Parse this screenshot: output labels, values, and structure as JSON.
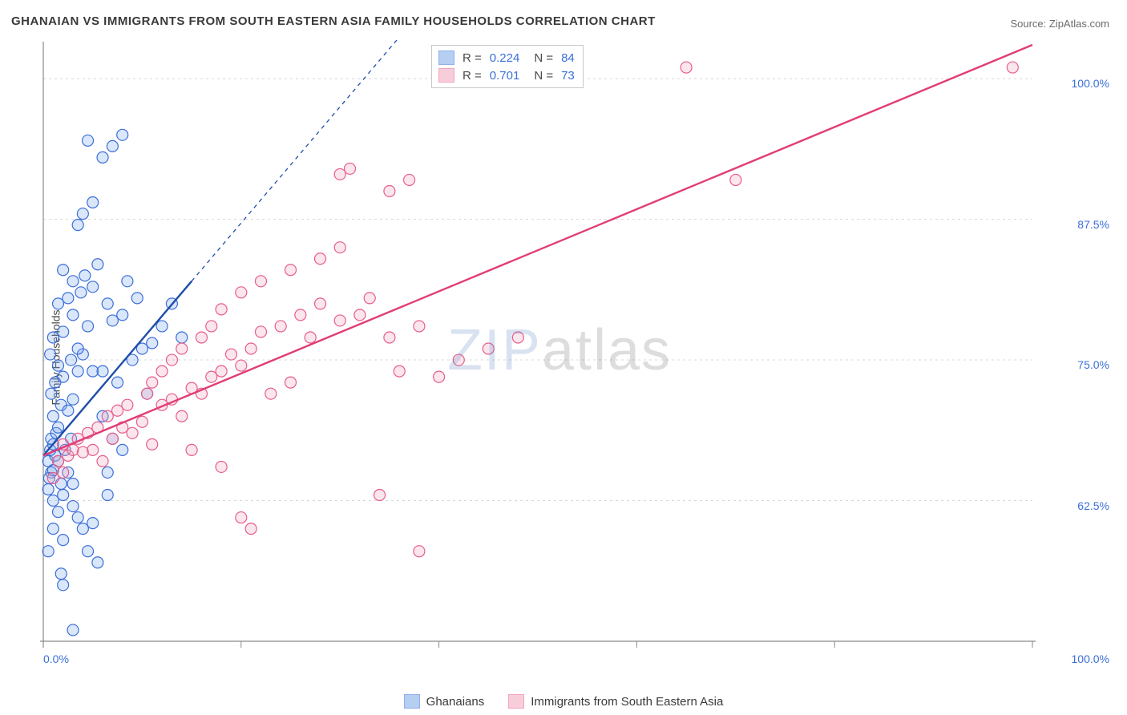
{
  "title": "GHANAIAN VS IMMIGRANTS FROM SOUTH EASTERN ASIA FAMILY HOUSEHOLDS CORRELATION CHART",
  "source": "Source: ZipAtlas.com",
  "y_axis_label": "Family Households",
  "watermark": {
    "part1": "ZIP",
    "part2": "atlas"
  },
  "chart": {
    "type": "scatter",
    "background_color": "#ffffff",
    "grid_color": "#d8d8d8",
    "axis_line_color": "#8a8a8a",
    "x_domain": [
      0,
      100
    ],
    "y_domain": [
      50,
      103
    ],
    "y_gridlines": [
      62.5,
      75.0,
      87.5,
      100.0
    ],
    "y_tick_labels": [
      "62.5%",
      "75.0%",
      "87.5%",
      "100.0%"
    ],
    "x_gridticks": [
      0,
      20,
      40,
      60,
      80,
      100
    ],
    "x_tick_labels": {
      "min": "0.0%",
      "max": "100.0%"
    },
    "marker_radius": 7,
    "marker_stroke_width": 1.2,
    "marker_fill_opacity": 0.28,
    "trend_line_width": 2.4,
    "trend_dash": "5,5",
    "series": [
      {
        "id": "ghanaians",
        "label": "Ghanaians",
        "fill": "#7aa7e8",
        "stroke": "#3b6fd9",
        "line_color": "#1f4ea8",
        "R": "0.224",
        "N": "84",
        "trend": {
          "x1": 0,
          "y1": 66.5,
          "x2": 15,
          "y2": 82,
          "extend_to_x": 48
        },
        "points": [
          [
            0.5,
            66
          ],
          [
            0.8,
            65
          ],
          [
            0.6,
            64.5
          ],
          [
            1,
            65.2
          ],
          [
            1.2,
            66.5
          ],
          [
            0.7,
            67
          ],
          [
            1.5,
            66
          ],
          [
            1,
            67.5
          ],
          [
            0.8,
            68
          ],
          [
            1.3,
            68.5
          ],
          [
            0.5,
            63.5
          ],
          [
            1.8,
            64
          ],
          [
            1,
            62.5
          ],
          [
            2,
            63
          ],
          [
            2.5,
            65
          ],
          [
            1.5,
            61.5
          ],
          [
            3,
            62
          ],
          [
            3.5,
            61
          ],
          [
            4,
            60
          ],
          [
            2,
            59
          ],
          [
            4.5,
            58
          ],
          [
            5,
            60.5
          ],
          [
            3,
            64
          ],
          [
            2.2,
            67
          ],
          [
            2.8,
            68
          ],
          [
            1.5,
            69
          ],
          [
            1,
            70
          ],
          [
            1.8,
            71
          ],
          [
            2.5,
            70.5
          ],
          [
            3,
            71.5
          ],
          [
            0.8,
            72
          ],
          [
            1.2,
            73
          ],
          [
            2,
            73.5
          ],
          [
            3.5,
            74
          ],
          [
            1.5,
            74.5
          ],
          [
            2.8,
            75
          ],
          [
            0.7,
            75.5
          ],
          [
            4,
            75.5
          ],
          [
            5,
            74
          ],
          [
            3.5,
            76
          ],
          [
            1,
            77
          ],
          [
            2,
            77.5
          ],
          [
            4.5,
            78
          ],
          [
            3,
            79
          ],
          [
            1.5,
            80
          ],
          [
            2.5,
            80.5
          ],
          [
            3.8,
            81
          ],
          [
            5,
            81.5
          ],
          [
            3,
            82
          ],
          [
            4.2,
            82.5
          ],
          [
            2,
            83
          ],
          [
            5.5,
            83.5
          ],
          [
            6.5,
            80
          ],
          [
            7,
            78.5
          ],
          [
            8,
            79
          ],
          [
            6,
            74
          ],
          [
            9,
            75
          ],
          [
            10,
            76
          ],
          [
            8.5,
            82
          ],
          [
            9.5,
            80.5
          ],
          [
            7.5,
            73
          ],
          [
            6,
            70
          ],
          [
            7,
            68
          ],
          [
            8,
            67
          ],
          [
            11,
            76.5
          ],
          [
            4,
            88
          ],
          [
            5,
            89
          ],
          [
            6,
            93
          ],
          [
            7,
            94
          ],
          [
            8,
            95
          ],
          [
            4.5,
            94.5
          ],
          [
            3,
            51
          ],
          [
            5.5,
            57
          ],
          [
            6.5,
            63
          ],
          [
            2,
            55
          ],
          [
            1,
            60
          ],
          [
            0.5,
            58
          ],
          [
            1.8,
            56
          ],
          [
            12,
            78
          ],
          [
            10.5,
            72
          ],
          [
            13,
            80
          ],
          [
            14,
            77
          ],
          [
            6.5,
            65
          ],
          [
            3.5,
            87
          ]
        ]
      },
      {
        "id": "sea",
        "label": "Immigrants from South Eastern Asia",
        "fill": "#f4a6bd",
        "stroke": "#e75d8a",
        "line_color": "#e13d74",
        "R": "0.701",
        "N": "73",
        "trend": {
          "x1": 0,
          "y1": 66.5,
          "x2": 100,
          "y2": 103,
          "extend_to_x": 100
        },
        "points": [
          [
            1,
            64.5
          ],
          [
            2,
            65
          ],
          [
            1.5,
            66
          ],
          [
            2.5,
            66.5
          ],
          [
            3,
            67
          ],
          [
            2,
            67.5
          ],
          [
            4,
            66.8
          ],
          [
            3.5,
            68
          ],
          [
            5,
            67
          ],
          [
            4.5,
            68.5
          ],
          [
            6,
            66
          ],
          [
            5.5,
            69
          ],
          [
            7,
            68
          ],
          [
            6.5,
            70
          ],
          [
            8,
            69
          ],
          [
            7.5,
            70.5
          ],
          [
            9,
            68.5
          ],
          [
            8.5,
            71
          ],
          [
            11,
            67.5
          ],
          [
            10,
            69.5
          ],
          [
            12,
            71
          ],
          [
            10.5,
            72
          ],
          [
            13,
            71.5
          ],
          [
            14,
            70
          ],
          [
            11,
            73
          ],
          [
            15,
            72.5
          ],
          [
            12,
            74
          ],
          [
            16,
            72
          ],
          [
            13,
            75
          ],
          [
            17,
            73.5
          ],
          [
            14,
            76
          ],
          [
            18,
            74
          ],
          [
            16,
            77
          ],
          [
            19,
            75.5
          ],
          [
            20,
            74.5
          ],
          [
            17,
            78
          ],
          [
            21,
            76
          ],
          [
            22,
            77.5
          ],
          [
            23,
            72
          ],
          [
            24,
            78
          ],
          [
            18,
            79.5
          ],
          [
            25,
            73
          ],
          [
            26,
            79
          ],
          [
            20,
            81
          ],
          [
            27,
            77
          ],
          [
            28,
            80
          ],
          [
            22,
            82
          ],
          [
            30,
            78.5
          ],
          [
            25,
            83
          ],
          [
            32,
            79
          ],
          [
            28,
            84
          ],
          [
            35,
            77
          ],
          [
            30,
            85
          ],
          [
            33,
            80.5
          ],
          [
            36,
            74
          ],
          [
            34,
            63
          ],
          [
            38,
            58
          ],
          [
            40,
            73.5
          ],
          [
            42,
            75
          ],
          [
            45,
            76
          ],
          [
            38,
            78
          ],
          [
            48,
            77
          ],
          [
            35,
            90
          ],
          [
            37,
            91
          ],
          [
            30,
            91.5
          ],
          [
            31,
            92
          ],
          [
            65,
            101
          ],
          [
            70,
            91
          ],
          [
            98,
            101
          ],
          [
            20,
            61
          ],
          [
            15,
            67
          ],
          [
            21,
            60
          ],
          [
            18,
            65.5
          ]
        ]
      }
    ]
  },
  "stats_box": {
    "r_prefix": "R =",
    "n_prefix": "N ="
  },
  "legend_bottom": {
    "items": [
      {
        "ref": "ghanaians"
      },
      {
        "ref": "sea"
      }
    ]
  }
}
